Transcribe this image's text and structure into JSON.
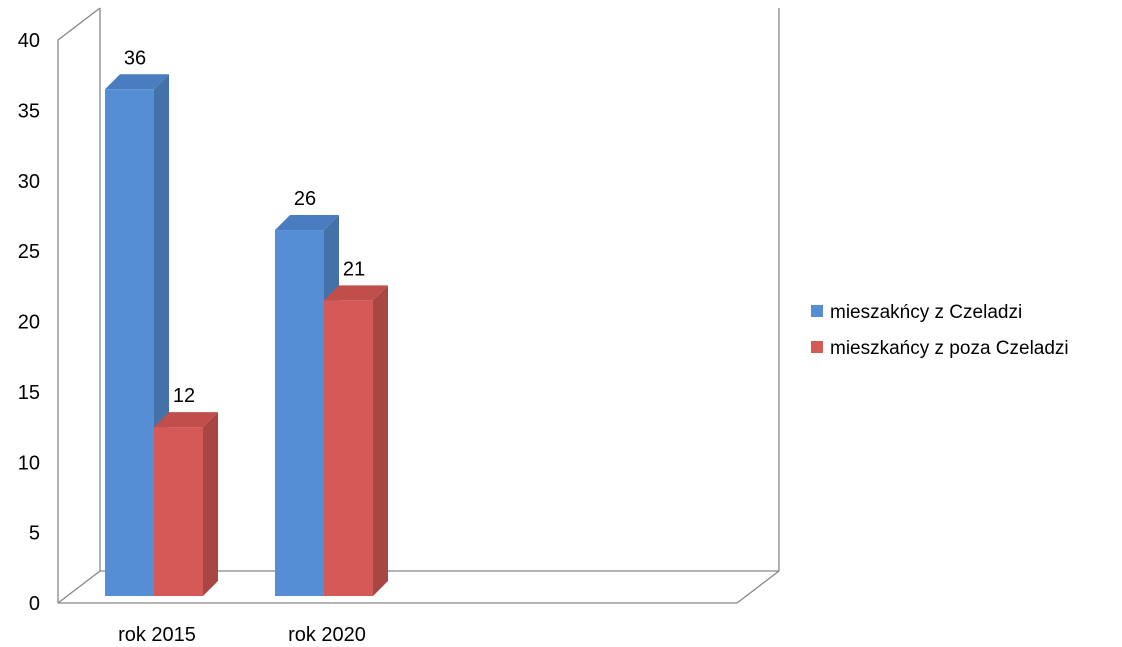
{
  "chart_data": {
    "type": "bar",
    "three_d": true,
    "categories": [
      "rok 2015",
      "rok 2020"
    ],
    "series": [
      {
        "name": "mieszakńcy z Czeladzi",
        "values": [
          36,
          26
        ],
        "color": "#558ED5",
        "side_color": "#4472A8",
        "top_color": "#4A7DC0"
      },
      {
        "name": "mieszkańcy z poza Czeladzi",
        "values": [
          12,
          21
        ],
        "color": "#D55A57",
        "side_color": "#A84644",
        "top_color": "#C04F4C"
      }
    ],
    "yticks": [
      "0",
      "5",
      "10",
      "15",
      "20",
      "25",
      "30",
      "35",
      "40"
    ],
    "ylim": [
      0,
      40
    ],
    "legend_position": "right",
    "grid": false,
    "data_labels": true,
    "axis_color": "#878787"
  }
}
